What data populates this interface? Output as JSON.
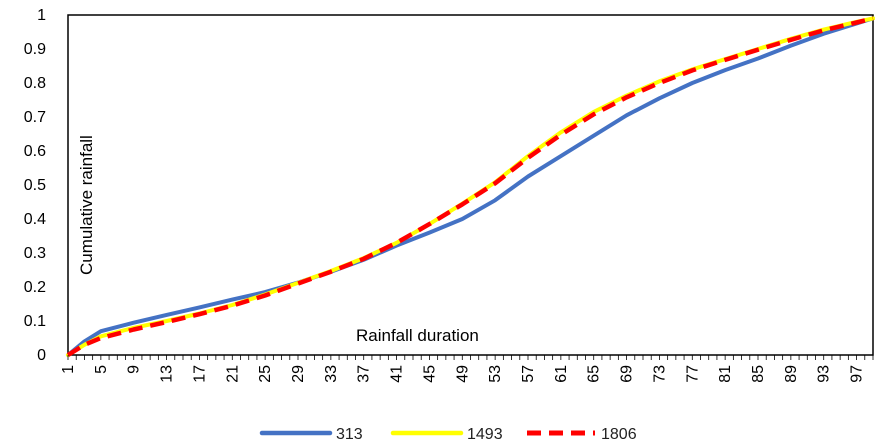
{
  "chart_data": {
    "type": "line",
    "title": "",
    "xlabel": "Rainfall duration",
    "ylabel": "Cumulative rainfall",
    "x_start": 1,
    "x_end": 99,
    "x_tick_labels": [
      "1",
      "5",
      "9",
      "13",
      "17",
      "21",
      "25",
      "29",
      "33",
      "37",
      "41",
      "45",
      "49",
      "53",
      "57",
      "61",
      "65",
      "69",
      "73",
      "77",
      "81",
      "85",
      "89",
      "93",
      "97"
    ],
    "y_ticks": [
      0,
      0.1,
      0.2,
      0.3,
      0.4,
      0.5,
      0.6,
      0.7,
      0.8,
      0.9,
      1
    ],
    "ylim": [
      0,
      1
    ],
    "grid": false,
    "legend_position": "bottom",
    "series": [
      {
        "name": "313",
        "color": "#4472C4",
        "style": "solid",
        "points": [
          [
            1,
            0
          ],
          [
            3,
            0.04
          ],
          [
            5,
            0.07
          ],
          [
            9,
            0.095
          ],
          [
            13,
            0.118
          ],
          [
            17,
            0.14
          ],
          [
            21,
            0.163
          ],
          [
            25,
            0.185
          ],
          [
            29,
            0.213
          ],
          [
            33,
            0.245
          ],
          [
            37,
            0.28
          ],
          [
            41,
            0.322
          ],
          [
            45,
            0.36
          ],
          [
            49,
            0.4
          ],
          [
            53,
            0.455
          ],
          [
            57,
            0.525
          ],
          [
            61,
            0.585
          ],
          [
            65,
            0.645
          ],
          [
            69,
            0.705
          ],
          [
            73,
            0.755
          ],
          [
            77,
            0.8
          ],
          [
            81,
            0.838
          ],
          [
            85,
            0.872
          ],
          [
            89,
            0.91
          ],
          [
            93,
            0.945
          ],
          [
            97,
            0.975
          ],
          [
            99,
            0.99
          ]
        ]
      },
      {
        "name": "1493",
        "color": "#FFFF00",
        "style": "solid",
        "points": [
          [
            1,
            0
          ],
          [
            3,
            0.03
          ],
          [
            5,
            0.055
          ],
          [
            9,
            0.08
          ],
          [
            13,
            0.1
          ],
          [
            17,
            0.122
          ],
          [
            21,
            0.147
          ],
          [
            25,
            0.178
          ],
          [
            29,
            0.212
          ],
          [
            33,
            0.247
          ],
          [
            37,
            0.285
          ],
          [
            41,
            0.33
          ],
          [
            45,
            0.385
          ],
          [
            49,
            0.445
          ],
          [
            53,
            0.508
          ],
          [
            57,
            0.585
          ],
          [
            61,
            0.655
          ],
          [
            65,
            0.715
          ],
          [
            69,
            0.763
          ],
          [
            73,
            0.805
          ],
          [
            77,
            0.84
          ],
          [
            81,
            0.87
          ],
          [
            85,
            0.9
          ],
          [
            89,
            0.93
          ],
          [
            93,
            0.957
          ],
          [
            97,
            0.98
          ],
          [
            99,
            0.99
          ]
        ]
      },
      {
        "name": "1806",
        "color": "#FF0000",
        "style": "dashed",
        "points": [
          [
            1,
            0
          ],
          [
            3,
            0.03
          ],
          [
            5,
            0.05
          ],
          [
            9,
            0.075
          ],
          [
            13,
            0.097
          ],
          [
            17,
            0.12
          ],
          [
            21,
            0.145
          ],
          [
            25,
            0.175
          ],
          [
            29,
            0.21
          ],
          [
            33,
            0.245
          ],
          [
            37,
            0.283
          ],
          [
            41,
            0.33
          ],
          [
            45,
            0.385
          ],
          [
            49,
            0.443
          ],
          [
            53,
            0.505
          ],
          [
            57,
            0.58
          ],
          [
            61,
            0.648
          ],
          [
            65,
            0.708
          ],
          [
            69,
            0.758
          ],
          [
            73,
            0.8
          ],
          [
            77,
            0.837
          ],
          [
            81,
            0.868
          ],
          [
            85,
            0.898
          ],
          [
            89,
            0.927
          ],
          [
            93,
            0.955
          ],
          [
            97,
            0.978
          ],
          [
            99,
            0.99
          ]
        ]
      }
    ]
  }
}
